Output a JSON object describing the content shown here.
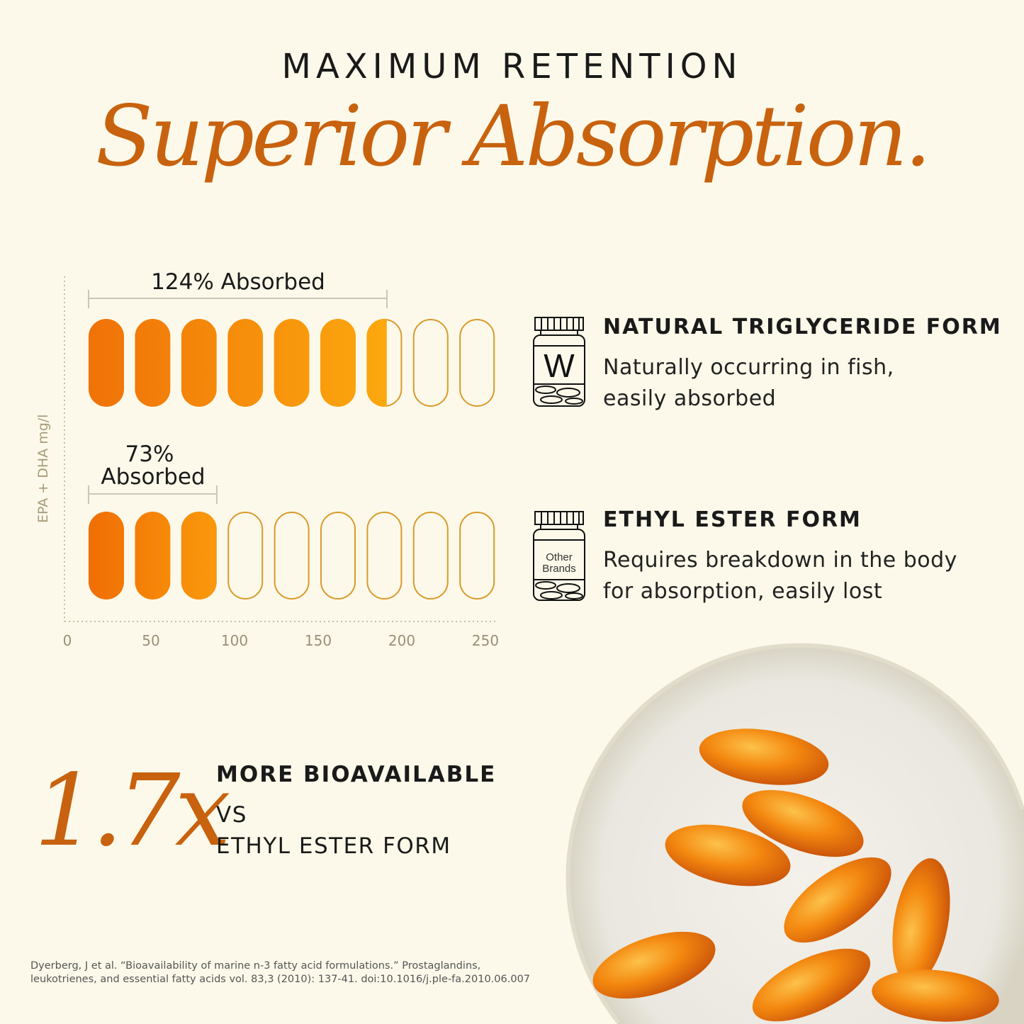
{
  "header": {
    "kicker": "MAXIMUM RETENTION",
    "headline": "Superior Absorption."
  },
  "chart_data": {
    "type": "bar",
    "orientation": "horizontal",
    "ylabel": "EPA + DHA mg/l",
    "xlim": [
      0,
      250
    ],
    "xticks": [
      "0",
      "50",
      "100",
      "150",
      "200",
      "250"
    ],
    "grid": false,
    "categories": [
      "Natural Triglyceride Form",
      "Ethyl Ester Form"
    ],
    "values": [
      191,
      89
    ],
    "annotations": [
      "124% Absorbed",
      "73% Absorbed"
    ],
    "annotation_lines": [
      [
        "73%",
        "Absorbed"
      ]
    ],
    "colors": {
      "fill_start": "#f07208",
      "fill_end": "#fcaa0e",
      "outline": "#d99a2c"
    }
  },
  "features": [
    {
      "icon": "w-bottle-icon",
      "bottle_label": "W",
      "title": "NATURAL TRIGLYCERIDE FORM",
      "body": [
        "Naturally occurring in fish,",
        "easily absorbed"
      ]
    },
    {
      "icon": "other-brands-bottle-icon",
      "bottle_label": [
        "Other",
        "Brands"
      ],
      "title": "ETHYL ESTER FORM",
      "body": [
        "Requires breakdown in the body",
        "for absorption, easily lost"
      ]
    }
  ],
  "stat": {
    "value": "1.7x",
    "line1": "MORE BIOAVAILABLE",
    "line2": "VS",
    "line3": "ETHYL ESTER FORM"
  },
  "footnote": "Dyerberg, J et al. “Bioavailability of marine n-3 fatty acid formulations.” Prostaglandins, leukotrienes, and essential fatty acids vol. 83,3 (2010): 137-41. doi:10.1016/j.ple-fa.2010.06.007",
  "colors": {
    "accent": "#c8620e",
    "background": "#fcf9ea"
  }
}
